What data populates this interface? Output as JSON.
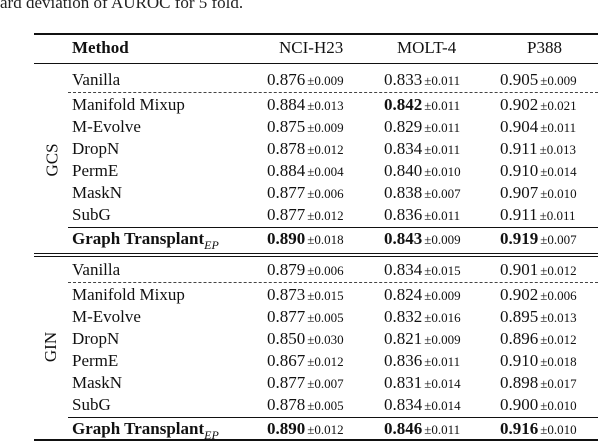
{
  "caption_fragment": "ard deviation of AUROC for 5 fold.",
  "header": {
    "method": "Method",
    "col1": "NCI-H23",
    "col2": "MOLT-4",
    "col3": "P388"
  },
  "groups": [
    {
      "label": "GCS",
      "rows": [
        {
          "method": "Vanilla",
          "v1": "0.876",
          "s1": "±0.009",
          "v2": "0.833",
          "s2": "±0.011",
          "v3": "0.905",
          "s3": "±0.009"
        },
        {
          "method": "Manifold Mixup",
          "v1": "0.884",
          "s1": "±0.013",
          "v2": "0.842",
          "s2": "±0.011",
          "v3": "0.902",
          "s3": "±0.021"
        },
        {
          "method": "M-Evolve",
          "v1": "0.875",
          "s1": "±0.009",
          "v2": "0.829",
          "s2": "±0.011",
          "v3": "0.904",
          "s3": "±0.011"
        },
        {
          "method": "DropN",
          "v1": "0.878",
          "s1": "±0.012",
          "v2": "0.834",
          "s2": "±0.011",
          "v3": "0.911",
          "s3": "±0.013"
        },
        {
          "method": "PermE",
          "v1": "0.884",
          "s1": "±0.004",
          "v2": "0.840",
          "s2": "±0.010",
          "v3": "0.910",
          "s3": "±0.014"
        },
        {
          "method": "MaskN",
          "v1": "0.877",
          "s1": "±0.006",
          "v2": "0.838",
          "s2": "±0.007",
          "v3": "0.907",
          "s3": "±0.010"
        },
        {
          "method": "SubG",
          "v1": "0.877",
          "s1": "±0.012",
          "v2": "0.836",
          "s2": "±0.011",
          "v3": "0.911",
          "s3": "±0.011"
        },
        {
          "method": "Graph Transplant",
          "sub": "EP",
          "v1": "0.890",
          "s1": "±0.018",
          "v2": "0.843",
          "s2": "±0.009",
          "v3": "0.919",
          "s3": "±0.007"
        }
      ]
    },
    {
      "label": "GIN",
      "rows": [
        {
          "method": "Vanilla",
          "v1": "0.879",
          "s1": "±0.006",
          "v2": "0.834",
          "s2": "±0.015",
          "v3": "0.901",
          "s3": "±0.012"
        },
        {
          "method": "Manifold Mixup",
          "v1": "0.873",
          "s1": "±0.015",
          "v2": "0.824",
          "s2": "±0.009",
          "v3": "0.902",
          "s3": "±0.006"
        },
        {
          "method": "M-Evolve",
          "v1": "0.877",
          "s1": "±0.005",
          "v2": "0.832",
          "s2": "±0.016",
          "v3": "0.895",
          "s3": "±0.013"
        },
        {
          "method": "DropN",
          "v1": "0.850",
          "s1": "±0.030",
          "v2": "0.821",
          "s2": "±0.009",
          "v3": "0.896",
          "s3": "±0.012"
        },
        {
          "method": "PermE",
          "v1": "0.867",
          "s1": "±0.012",
          "v2": "0.836",
          "s2": "±0.011",
          "v3": "0.910",
          "s3": "±0.018"
        },
        {
          "method": "MaskN",
          "v1": "0.877",
          "s1": "±0.007",
          "v2": "0.831",
          "s2": "±0.014",
          "v3": "0.898",
          "s3": "±0.017"
        },
        {
          "method": "SubG",
          "v1": "0.878",
          "s1": "±0.005",
          "v2": "0.834",
          "s2": "±0.014",
          "v3": "0.900",
          "s3": "±0.010"
        },
        {
          "method": "Graph Transplant",
          "sub": "EP",
          "v1": "0.890",
          "s1": "±0.012",
          "v2": "0.846",
          "s2": "±0.011",
          "v3": "0.916",
          "s3": "±0.010"
        }
      ]
    }
  ]
}
